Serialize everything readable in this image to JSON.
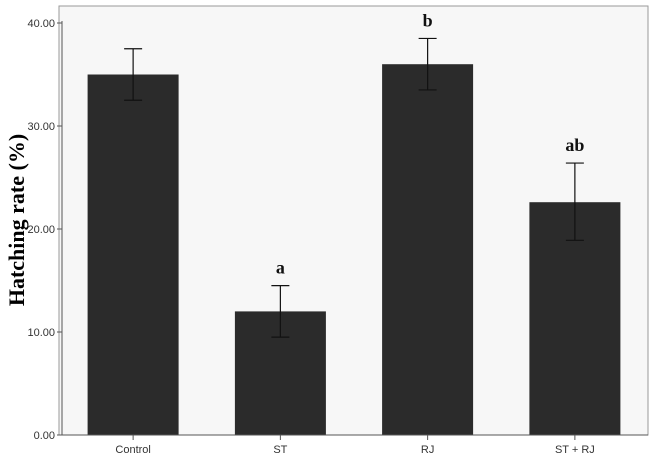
{
  "chart_data": {
    "type": "bar",
    "title": "",
    "xlabel": "",
    "ylabel": "Hatching rate (%)",
    "categories": [
      "Control",
      "ST",
      "RJ",
      "ST + RJ"
    ],
    "values": [
      35.0,
      12.0,
      36.0,
      22.6
    ],
    "error_low": [
      32.5,
      9.5,
      33.5,
      18.9
    ],
    "error_high": [
      37.5,
      14.5,
      38.5,
      26.4
    ],
    "significance_labels": [
      "",
      "a",
      "b",
      "ab"
    ],
    "ylim": [
      0,
      40
    ],
    "yticks": [
      0,
      10,
      20,
      30,
      40
    ],
    "ytick_labels": [
      "0.00",
      "10.00",
      "20.00",
      "30.00",
      "40.00"
    ],
    "grid": false,
    "colors": {
      "bar": "#2b2b2b",
      "plot_background": "#f7f7f7",
      "axis": "#555555"
    }
  }
}
